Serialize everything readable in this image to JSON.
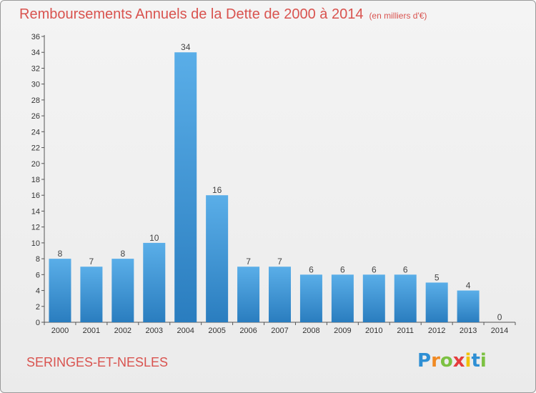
{
  "title": "Remboursements Annuels de la Dette de 2000 à 2014",
  "subtitle": "(en milliers d'€)",
  "commune": "SERINGES-ET-NESLES",
  "brand": {
    "letters": [
      "P",
      "r",
      "o",
      "x",
      "i",
      "t",
      "i"
    ],
    "colors": [
      "#2e8fd4",
      "#f08a24",
      "#7cc142",
      "#e53c3c",
      "#f2c200",
      "#2e8fd4",
      "#7cc142"
    ]
  },
  "colors": {
    "bar_top": "#5aaee8",
    "bar_bottom": "#2a7dbf",
    "title": "#d9534f"
  },
  "chart_data": {
    "type": "bar",
    "title": "Remboursements Annuels de la Dette de 2000 à 2014",
    "subtitle": "(en milliers d'€)",
    "xlabel": "",
    "ylabel": "",
    "ylim": [
      0,
      36
    ],
    "yticks": [
      0,
      2,
      4,
      6,
      8,
      10,
      12,
      14,
      16,
      18,
      20,
      22,
      24,
      26,
      28,
      30,
      32,
      34,
      36
    ],
    "grid": false,
    "categories": [
      "2000",
      "2001",
      "2002",
      "2003",
      "2004",
      "2005",
      "2006",
      "2007",
      "2008",
      "2009",
      "2010",
      "2011",
      "2012",
      "2013",
      "2014"
    ],
    "values": [
      8,
      7,
      8,
      10,
      34,
      16,
      7,
      7,
      6,
      6,
      6,
      6,
      5,
      4,
      0
    ]
  }
}
